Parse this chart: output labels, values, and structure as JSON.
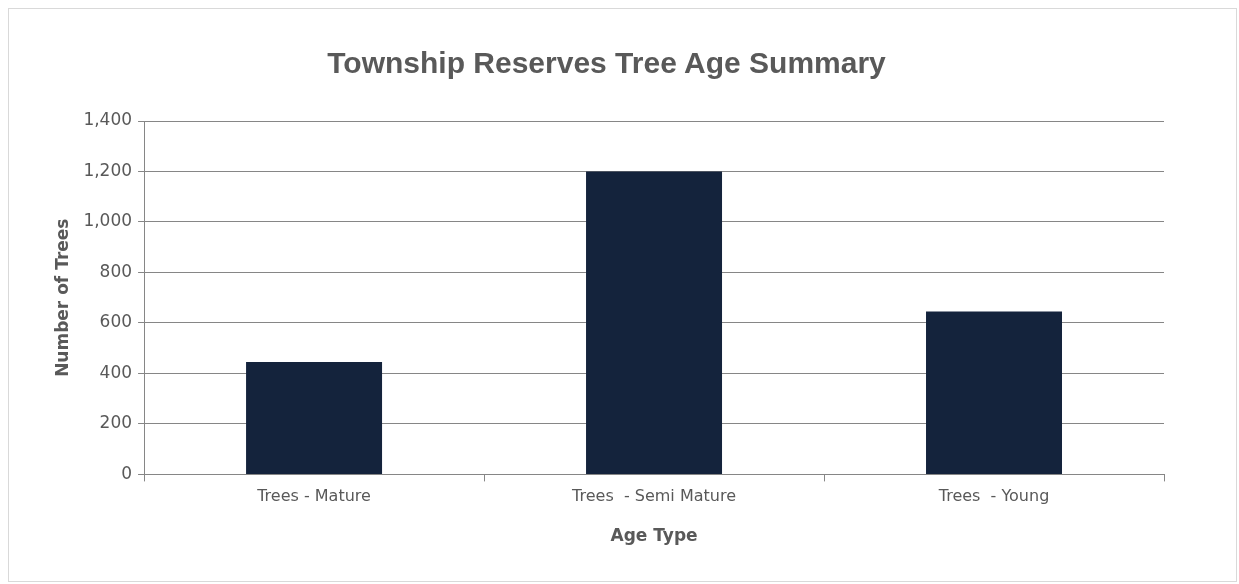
{
  "chart_data": {
    "type": "bar",
    "title": "Township Reserves Tree Age Summary",
    "xlabel": "Age Type",
    "ylabel": "Number of Trees",
    "categories": [
      "Trees - Mature",
      "Trees  - Semi Mature",
      "Trees  - Young"
    ],
    "values": [
      445,
      1200,
      645
    ],
    "color": "#14233c",
    "ylim": [
      0,
      1400
    ],
    "yticks": [
      0,
      200,
      400,
      600,
      800,
      {
        "value": 1000,
        "label": "1,000"
      },
      {
        "value": 1200,
        "label": "1,200"
      },
      {
        "value": 1400,
        "label": "1,400"
      }
    ],
    "grid": "y",
    "legend": false
  }
}
